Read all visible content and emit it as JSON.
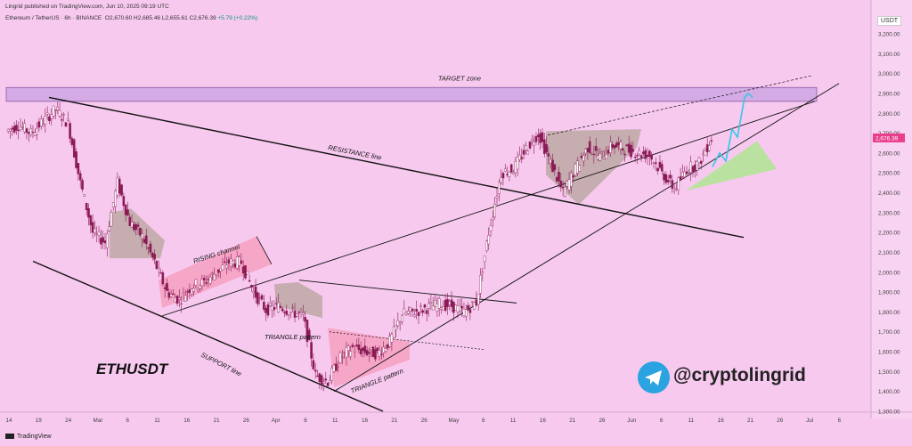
{
  "header": {
    "published_text": "Lingrid published on TradingView.com, Jun 10, 2025 09:19 UTC",
    "symbol_line": "Ethereum / TetherUS · 6h · BINANCE",
    "ohlc": "O2,670.60  H2,685.46  L2,655.61  C2,676.39",
    "change": "+5.79 (+0.22%)"
  },
  "footer": {
    "brand": "TradingView"
  },
  "watermark": {
    "ticker": "ETHUSDT",
    "handle": "@cryptolingrid"
  },
  "colors": {
    "background": "#f7c9ef",
    "up": "#ffffff",
    "down": "#8a1a55",
    "line": "#111111",
    "projection": "#35c6e8",
    "price_badge": "#e83e8c",
    "target_zone": "#c8a0e0",
    "green_triangle": "#b6e39a"
  },
  "chart_data": {
    "type": "candlestick",
    "title": "Ethereum / TetherUS · 6h · BINANCE",
    "ylabel": "USDT",
    "ylim": [
      1300,
      3300
    ],
    "y_ticks": [
      "3,200.00",
      "3,100.00",
      "3,000.00",
      "2,900.00",
      "2,800.00",
      "2,700.00",
      "2,600.00",
      "2,500.00",
      "2,400.00",
      "2,300.00",
      "2,200.00",
      "2,100.00",
      "2,000.00",
      "1,900.00",
      "1,800.00",
      "1,700.00",
      "1,600.00",
      "1,500.00",
      "1,400.00",
      "1,300.00"
    ],
    "x_ticks": [
      "14",
      "19",
      "24",
      "Mar",
      "6",
      "11",
      "16",
      "21",
      "26",
      "Apr",
      "6",
      "11",
      "16",
      "21",
      "26",
      "May",
      "6",
      "11",
      "16",
      "21",
      "26",
      "Jun",
      "6",
      "11",
      "16",
      "21",
      "26",
      "Jul",
      "6"
    ],
    "last_price": "2,676.39",
    "price_series": [
      [
        "14",
        2710
      ],
      [
        "16",
        2740
      ],
      [
        "19",
        2700
      ],
      [
        "22",
        2760
      ],
      [
        "24",
        2820
      ],
      [
        "25",
        2750
      ],
      [
        "27",
        2450
      ],
      [
        "Mar",
        2200
      ],
      [
        "3",
        2150
      ],
      [
        "4",
        2450
      ],
      [
        "6",
        2250
      ],
      [
        "8",
        2180
      ],
      [
        "10",
        2050
      ],
      [
        "11",
        1900
      ],
      [
        "13",
        1860
      ],
      [
        "16",
        1930
      ],
      [
        "18",
        1950
      ],
      [
        "21",
        2000
      ],
      [
        "24",
        2050
      ],
      [
        "26",
        2050
      ],
      [
        "28",
        1900
      ],
      [
        "30",
        1810
      ],
      [
        "Apr",
        1830
      ],
      [
        "4",
        1800
      ],
      [
        "6",
        1780
      ],
      [
        "7",
        1480
      ],
      [
        "9",
        1450
      ],
      [
        "11",
        1570
      ],
      [
        "14",
        1620
      ],
      [
        "16",
        1600
      ],
      [
        "18",
        1590
      ],
      [
        "21",
        1650
      ],
      [
        "23",
        1790
      ],
      [
        "26",
        1800
      ],
      [
        "29",
        1820
      ],
      [
        "May",
        1840
      ],
      [
        "3",
        1830
      ],
      [
        "6",
        1800
      ],
      [
        "8",
        1850
      ],
      [
        "9",
        2200
      ],
      [
        "10",
        2500
      ],
      [
        "11",
        2520
      ],
      [
        "13",
        2620
      ],
      [
        "14",
        2700
      ],
      [
        "16",
        2550
      ],
      [
        "18",
        2400
      ],
      [
        "21",
        2520
      ],
      [
        "23",
        2630
      ],
      [
        "26",
        2580
      ],
      [
        "28",
        2640
      ],
      [
        "30",
        2620
      ],
      [
        "Jun",
        2600
      ],
      [
        "3",
        2590
      ],
      [
        "5",
        2500
      ],
      [
        "6",
        2420
      ],
      [
        "8",
        2520
      ],
      [
        "9",
        2550
      ],
      [
        "10",
        2676
      ]
    ],
    "annotations": [
      "TARGET zone",
      "RESISTANCE line",
      "RISING channel",
      "TRIANGLE pattern",
      "SUPPORT line",
      "TRIANGLE pattern"
    ]
  }
}
